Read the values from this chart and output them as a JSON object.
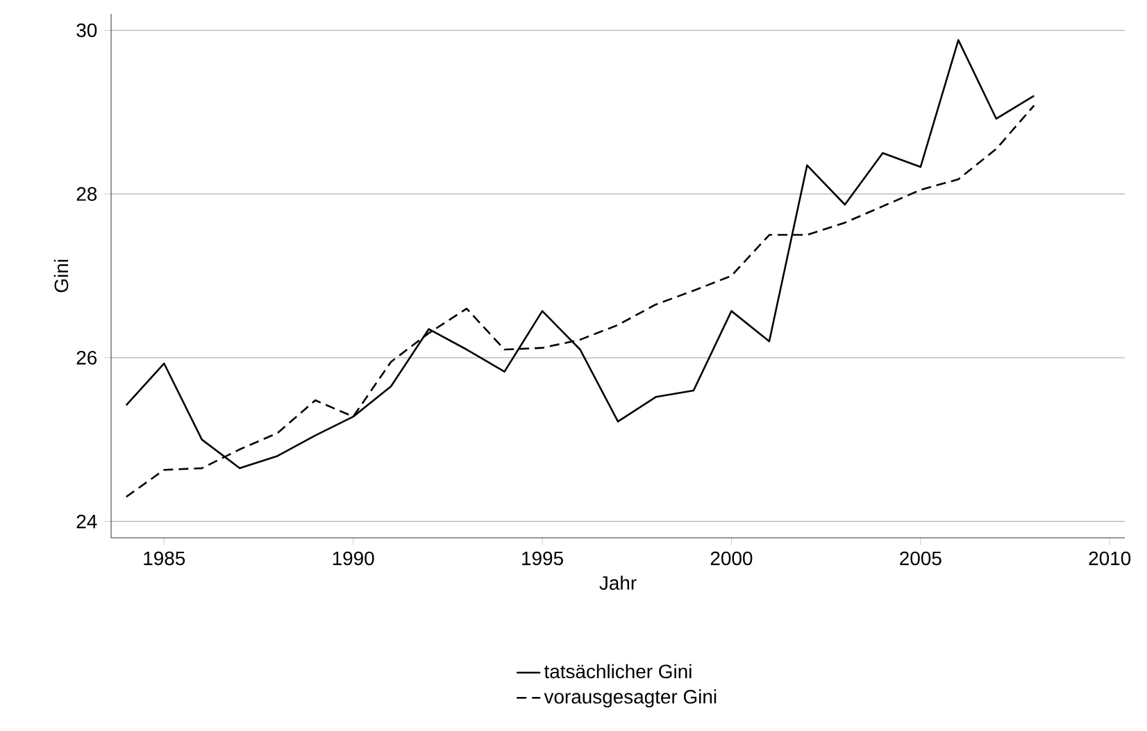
{
  "chart_data": {
    "type": "line",
    "xlabel": "Jahr",
    "ylabel": "Gini",
    "x": [
      1984,
      1985,
      1986,
      1987,
      1988,
      1989,
      1990,
      1991,
      1992,
      1993,
      1994,
      1995,
      1996,
      1997,
      1998,
      1999,
      2000,
      2001,
      2002,
      2003,
      2004,
      2005,
      2006,
      2007,
      2008
    ],
    "series": [
      {
        "name": "tatsächlicher Gini",
        "color": "#000000",
        "line_style": "solid",
        "values": [
          25.42,
          25.93,
          25.0,
          24.65,
          24.8,
          25.05,
          25.28,
          25.65,
          26.35,
          26.1,
          25.83,
          26.57,
          26.1,
          25.22,
          25.52,
          25.6,
          26.57,
          26.2,
          28.35,
          27.87,
          28.5,
          28.33,
          29.88,
          28.92,
          29.2
        ]
      },
      {
        "name": "vorausgesagter Gini",
        "color": "#000000",
        "line_style": "dashed",
        "values": [
          24.3,
          24.63,
          24.65,
          24.88,
          25.08,
          25.48,
          25.28,
          25.95,
          26.3,
          26.6,
          26.1,
          26.12,
          26.22,
          26.4,
          26.65,
          26.82,
          27.0,
          27.5,
          27.5,
          27.65,
          27.85,
          28.05,
          28.18,
          28.55,
          29.08
        ]
      }
    ],
    "xlim": [
      1983.6,
      2010.4
    ],
    "ylim": [
      23.8,
      30.2
    ],
    "xticks": [
      1985,
      1990,
      1995,
      2000,
      2005,
      2010
    ],
    "yticks": [
      24,
      26,
      28,
      30
    ],
    "grid": "y",
    "legend": "bottom",
    "marker": "none"
  }
}
